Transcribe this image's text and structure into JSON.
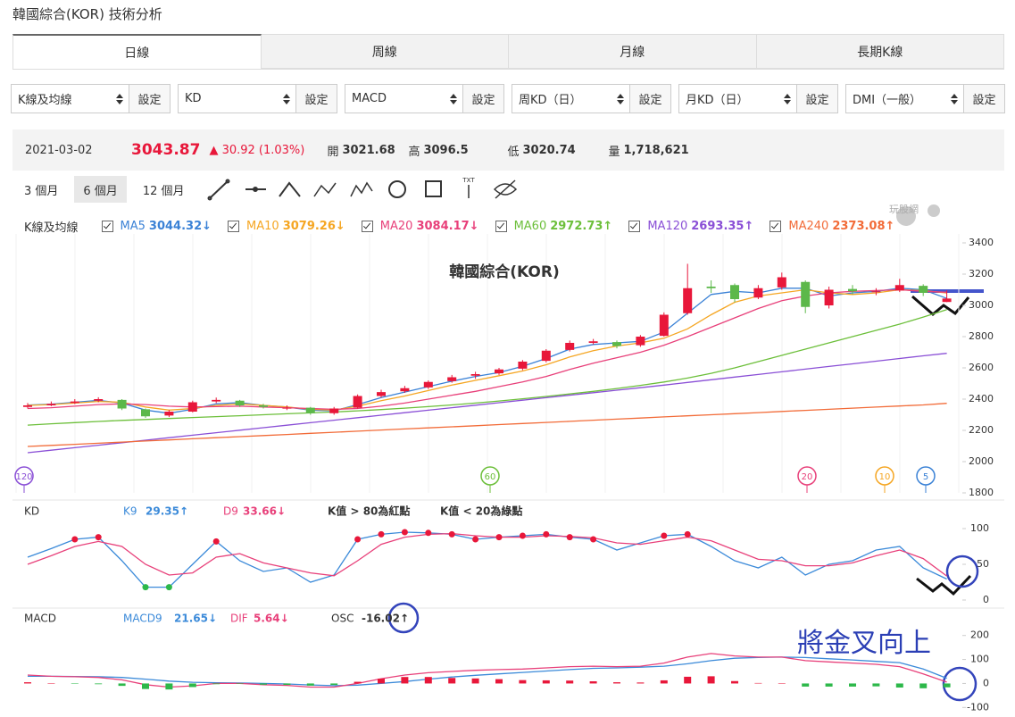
{
  "page": {
    "title": "韓國綜合(KOR) 技術分析",
    "tabs": [
      "日線",
      "周線",
      "月線",
      "長期K線"
    ],
    "selects": [
      "K線及均線",
      "KD",
      "MACD",
      "周KD（日）",
      "月KD（日）",
      "DMI（一般）"
    ],
    "settings_button": "設定",
    "ranges": [
      "3 個月",
      "6 個月",
      "12 個月"
    ],
    "logo": "玩股網"
  },
  "quote": {
    "date": "2021-03-02",
    "price": "3043.87",
    "change": "▲ 30.92 (1.03%)",
    "open_label": "開",
    "open": "3021.68",
    "high_label": "高",
    "high": "3096.5",
    "low_label": "低",
    "low": "3020.74",
    "volume_label": "量",
    "volume": "1,718,621"
  },
  "chart_data": [
    {
      "type": "candlestick",
      "title": "韓國綜合(KOR)",
      "legend_title": "K線及均線",
      "up_color": "#e8173a",
      "down_color": "#5cb84a",
      "open": [
        2350,
        2360,
        2375,
        2390,
        2395,
        2335,
        2295,
        2320,
        2385,
        2390,
        2360,
        2340,
        2345,
        2310,
        2345,
        2420,
        2450,
        2475,
        2515,
        2550,
        2565,
        2595,
        2645,
        2715,
        2760,
        2765,
        2745,
        2805,
        2950,
        3120,
        3130,
        3050,
        3115,
        3150,
        3000,
        3105,
        3085,
        3095,
        3125,
        3021.68
      ],
      "high": [
        2375,
        2385,
        2400,
        2412,
        2400,
        2340,
        2330,
        2390,
        2410,
        2395,
        2370,
        2360,
        2350,
        2350,
        2430,
        2460,
        2485,
        2520,
        2555,
        2575,
        2600,
        2650,
        2720,
        2775,
        2785,
        2775,
        2810,
        2955,
        3266,
        3160,
        3140,
        3130,
        3210,
        3160,
        3120,
        3130,
        3110,
        3170,
        3135,
        3096.5
      ],
      "low": [
        2340,
        2355,
        2368,
        2380,
        2330,
        2280,
        2285,
        2315,
        2375,
        2350,
        2340,
        2330,
        2300,
        2300,
        2340,
        2410,
        2440,
        2465,
        2505,
        2530,
        2555,
        2585,
        2635,
        2705,
        2750,
        2725,
        2735,
        2800,
        2940,
        3080,
        3020,
        3040,
        3100,
        2950,
        2980,
        3070,
        3065,
        3085,
        3060,
        3020.74
      ],
      "close": [
        2360,
        2370,
        2385,
        2400,
        2340,
        2290,
        2320,
        2380,
        2395,
        2360,
        2350,
        2345,
        2310,
        2340,
        2420,
        2445,
        2470,
        2510,
        2540,
        2560,
        2590,
        2640,
        2710,
        2760,
        2770,
        2740,
        2800,
        2940,
        3110,
        3110,
        3040,
        3110,
        3180,
        2990,
        3100,
        3090,
        3090,
        3130,
        3080,
        3043.87
      ],
      "series": [
        {
          "name": "MA5",
          "color": "#3b82d6",
          "last_label": "3044.32↓",
          "values": [
            2362,
            2368,
            2380,
            2392,
            2375,
            2330,
            2310,
            2335,
            2370,
            2378,
            2360,
            2350,
            2330,
            2325,
            2365,
            2410,
            2445,
            2480,
            2515,
            2545,
            2570,
            2610,
            2660,
            2720,
            2750,
            2760,
            2770,
            2830,
            2950,
            3070,
            3090,
            3080,
            3110,
            3110,
            3060,
            3080,
            3090,
            3110,
            3100,
            3044.32
          ]
        },
        {
          "name": "MA10",
          "color": "#f5a623",
          "last_label": "3079.26↓",
          "values": [
            2360,
            2365,
            2375,
            2385,
            2380,
            2350,
            2330,
            2340,
            2360,
            2370,
            2360,
            2350,
            2335,
            2330,
            2355,
            2390,
            2420,
            2455,
            2490,
            2520,
            2550,
            2580,
            2620,
            2670,
            2710,
            2740,
            2760,
            2790,
            2850,
            2940,
            3020,
            3060,
            3080,
            3100,
            3080,
            3070,
            3080,
            3100,
            3095,
            3079.26
          ]
        },
        {
          "name": "MA20",
          "color": "#e8407a",
          "last_label": "3084.17↓",
          "values": [
            2340,
            2345,
            2355,
            2365,
            2370,
            2365,
            2355,
            2350,
            2352,
            2355,
            2350,
            2345,
            2340,
            2335,
            2340,
            2355,
            2375,
            2400,
            2425,
            2450,
            2480,
            2510,
            2545,
            2590,
            2630,
            2665,
            2700,
            2745,
            2800,
            2860,
            2920,
            2980,
            3030,
            3060,
            3080,
            3090,
            3095,
            3100,
            3090,
            3084.17
          ]
        },
        {
          "name": "MA60",
          "color": "#6cbf3a",
          "last_label": "2972.73↑",
          "values": [
            2234,
            2242,
            2250,
            2257,
            2264,
            2270,
            2276,
            2282,
            2288,
            2294,
            2300,
            2306,
            2312,
            2318,
            2325,
            2333,
            2342,
            2352,
            2363,
            2375,
            2388,
            2402,
            2417,
            2433,
            2450,
            2468,
            2488,
            2510,
            2535,
            2565,
            2600,
            2640,
            2680,
            2720,
            2760,
            2800,
            2840,
            2880,
            2925,
            2972.73
          ]
        },
        {
          "name": "MA120",
          "color": "#8a4fd6",
          "last_label": "2693.35↑",
          "values": [
            2057,
            2073,
            2089,
            2105,
            2121,
            2137,
            2153,
            2169,
            2185,
            2201,
            2217,
            2233,
            2249,
            2265,
            2281,
            2297,
            2313,
            2329,
            2345,
            2361,
            2377,
            2393,
            2409,
            2425,
            2441,
            2457,
            2473,
            2490,
            2507,
            2524,
            2541,
            2558,
            2575,
            2592,
            2609,
            2626,
            2643,
            2660,
            2677,
            2693.35
          ]
        },
        {
          "name": "MA240",
          "color": "#f26b38",
          "last_label": "2373.08↑",
          "values": [
            2097,
            2104,
            2111,
            2118,
            2125,
            2132,
            2139,
            2146,
            2153,
            2160,
            2167,
            2174,
            2181,
            2188,
            2195,
            2202,
            2209,
            2216,
            2223,
            2230,
            2237,
            2244,
            2251,
            2258,
            2265,
            2272,
            2279,
            2286,
            2293,
            2300,
            2307,
            2314,
            2321,
            2328,
            2335,
            2342,
            2349,
            2356,
            2363,
            2373.08
          ]
        }
      ],
      "markers": [
        {
          "label": "120",
          "color": "#8a4fd6"
        },
        {
          "label": "60",
          "color": "#6cbf3a"
        },
        {
          "label": "20",
          "color": "#e8407a"
        },
        {
          "label": "10",
          "color": "#f5a623"
        },
        {
          "label": "5",
          "color": "#3b82d6"
        }
      ],
      "ylim": [
        1800,
        3400
      ],
      "yticks": [
        1800,
        2000,
        2200,
        2400,
        2600,
        2800,
        3000,
        3200,
        3400
      ]
    },
    {
      "type": "line",
      "title": "KD",
      "notes": [
        "K值 > 80為紅點",
        "K值 < 20為綠點"
      ],
      "upper": 80,
      "lower": 20,
      "upper_color": "#e8173a",
      "lower_color": "#2db84a",
      "series": [
        {
          "name": "K9",
          "color": "#3b8ad9",
          "last_label": "29.35↑",
          "values": [
            60,
            72,
            85,
            88,
            55,
            18,
            18,
            50,
            82,
            55,
            40,
            45,
            25,
            35,
            85,
            92,
            95,
            94,
            92,
            85,
            88,
            90,
            92,
            88,
            85,
            70,
            80,
            90,
            92,
            75,
            55,
            45,
            60,
            35,
            50,
            55,
            70,
            75,
            45,
            29.35
          ]
        },
        {
          "name": "D9",
          "color": "#e8407a",
          "last_label": "33.66↓",
          "values": [
            50,
            62,
            75,
            82,
            75,
            50,
            35,
            38,
            60,
            65,
            52,
            45,
            38,
            34,
            55,
            78,
            88,
            92,
            93,
            90,
            88,
            88,
            90,
            89,
            87,
            80,
            78,
            83,
            88,
            83,
            70,
            57,
            55,
            48,
            48,
            52,
            62,
            70,
            58,
            33.66
          ]
        }
      ],
      "ylim": [
        0,
        100
      ],
      "yticks": [
        0,
        50,
        100
      ]
    },
    {
      "type": "macd",
      "title": "MACD",
      "annotation": "將金叉向上",
      "series": [
        {
          "name": "MACD9",
          "type": "line",
          "color": "#3b8ad9",
          "last_label": "21.65↓",
          "values": [
            30,
            30,
            29,
            28,
            25,
            18,
            10,
            5,
            3,
            2,
            0,
            -2,
            -6,
            -9,
            -7,
            0,
            8,
            18,
            27,
            34,
            40,
            46,
            52,
            58,
            63,
            65,
            68,
            72,
            82,
            95,
            105,
            108,
            110,
            108,
            103,
            98,
            92,
            87,
            60,
            21.65
          ]
        },
        {
          "name": "DIF",
          "type": "line",
          "color": "#e8407a",
          "last_label": "5.64↓",
          "values": [
            35,
            30,
            28,
            25,
            15,
            -5,
            -15,
            -10,
            0,
            0,
            -5,
            -8,
            -15,
            -15,
            0,
            20,
            35,
            45,
            50,
            55,
            58,
            60,
            65,
            70,
            72,
            70,
            72,
            85,
            110,
            125,
            115,
            110,
            110,
            95,
            90,
            85,
            80,
            70,
            40,
            5.64
          ]
        },
        {
          "name": "OSC",
          "type": "bar",
          "color": "#333333",
          "up_color": "#e8173a",
          "down_color": "#2db84a",
          "last_label": "-16.02↑",
          "values": [
            5,
            0,
            -1,
            -3,
            -10,
            -23,
            -25,
            -15,
            -3,
            -2,
            -5,
            -6,
            -9,
            -6,
            7,
            20,
            27,
            27,
            23,
            21,
            18,
            14,
            13,
            12,
            9,
            5,
            4,
            13,
            28,
            30,
            10,
            2,
            0,
            -13,
            -13,
            -13,
            -12,
            -17,
            -20,
            -16.02
          ]
        }
      ],
      "ylim": [
        -110,
        225
      ],
      "yticks": [
        -100,
        0,
        100,
        200
      ]
    }
  ]
}
